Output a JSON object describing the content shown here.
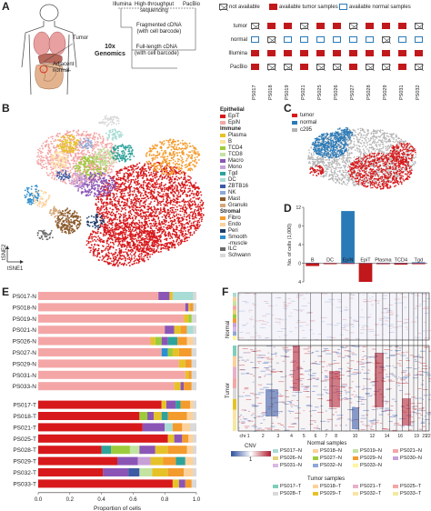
{
  "panels": {
    "a": "A",
    "b": "B",
    "c": "C",
    "d": "D",
    "e": "E",
    "f": "F"
  },
  "panel_a": {
    "anatomy_labels": {
      "tumor": "Tumor",
      "adjacent": "Adjacent\nnormal"
    },
    "workflow": {
      "illumina": "Illumina",
      "pacbio": "PacBio",
      "hts": "High-throughput\nsequencing",
      "fragmented": "Fragmented cDNA\n(with cell barcode)",
      "tenx": "10x\nGenomics",
      "fulllength": "Full-length cDNA\n(with cell barcode)"
    },
    "legend": {
      "not_available": "not available",
      "tumor_avail": "available tumor samples",
      "normal_avail": "available normal samples"
    },
    "rows": [
      "tumor",
      "normal",
      "Illumina",
      "PacBio"
    ],
    "samples": [
      "PS017",
      "PS018",
      "PS019",
      "PS021",
      "PS025",
      "PS026",
      "PS027",
      "PS028",
      "PS029",
      "PS031",
      "PS032",
      "PS033"
    ],
    "grid": [
      [
        "X",
        "T",
        "T",
        "X",
        "T",
        "T",
        "X",
        "T",
        "T",
        "T",
        "X",
        "T"
      ],
      [
        "N",
        "X",
        "N",
        "N",
        "N",
        "N",
        "N",
        "N",
        "X",
        "N",
        "N",
        "N"
      ],
      [
        "T",
        "T",
        "T",
        "T",
        "T",
        "T",
        "T",
        "T",
        "T",
        "T",
        "T",
        "T"
      ],
      [
        "T",
        "X",
        "X",
        "T",
        "X",
        "X",
        "T",
        "X",
        "X",
        "T",
        "X",
        "X"
      ]
    ],
    "colors": {
      "tumor": "#c0181b",
      "normal": "#2a7ab8"
    }
  },
  "panel_b": {
    "axis": {
      "y": "tSNE2",
      "x": "tSNE1"
    },
    "groups": [
      {
        "title": "Epithelial",
        "items": [
          {
            "label": "EpiT",
            "color": "#d7191c"
          },
          {
            "label": "EpiN",
            "color": "#f4a6a6"
          }
        ]
      },
      {
        "title": "Immune",
        "items": [
          {
            "label": "Plasma",
            "color": "#e6c229"
          },
          {
            "label": "B",
            "color": "#fde2a2"
          },
          {
            "label": "TCD4",
            "color": "#9ccb3c"
          },
          {
            "label": "TCD8",
            "color": "#c3e3a1"
          },
          {
            "label": "Macro",
            "color": "#8b55b5"
          },
          {
            "label": "Mono",
            "color": "#c7a0d8"
          },
          {
            "label": "Tgd",
            "color": "#2ea39b"
          },
          {
            "label": "DC",
            "color": "#a8dcd5"
          },
          {
            "label": "ZBTB16",
            "color": "#3b5ba5"
          },
          {
            "label": "NK",
            "color": "#8ea8d8"
          },
          {
            "label": "Mast",
            "color": "#8c5a2b"
          },
          {
            "label": "Granulo",
            "color": "#d6a77a"
          }
        ]
      },
      {
        "title": "Stromal",
        "items": [
          {
            "label": "Fibro",
            "color": "#f49b2d"
          },
          {
            "label": "Endo",
            "color": "#fcd19c"
          },
          {
            "label": "Peri",
            "color": "#1f3d6b"
          },
          {
            "label": "Smooth\n-muscle",
            "color": "#2d8fd0"
          },
          {
            "label": "ILC",
            "color": "#6a6a6a"
          },
          {
            "label": "Schwann",
            "color": "#d9d9d9"
          }
        ]
      }
    ]
  },
  "panel_c": {
    "legend": [
      {
        "label": "tumor",
        "color": "#d7191c"
      },
      {
        "label": "normal",
        "color": "#2a7ab8"
      },
      {
        "label": "c295",
        "color": "#b3b3b3"
      }
    ]
  },
  "chart_data": [
    {
      "type": "bar",
      "panel": "D",
      "ylabel": "No. of cells (1,000)",
      "ylim": [
        -4,
        12
      ],
      "yticks": [
        -4,
        0,
        4,
        8,
        12
      ],
      "categories": [
        "B",
        "DC",
        "EpiN",
        "EpiT",
        "Plasma",
        "TCD4",
        "Tgd"
      ],
      "series": [
        {
          "name": "normal",
          "color": "#2a7ab8",
          "values": [
            0.1,
            0.05,
            11.2,
            0.05,
            0.1,
            0.1,
            0.2
          ]
        },
        {
          "name": "tumor",
          "color": "#c0181b",
          "values": [
            -0.6,
            -0.2,
            -0.05,
            -4.0,
            -0.2,
            -0.3,
            -0.2
          ]
        }
      ]
    },
    {
      "type": "bar",
      "panel": "E",
      "orientation": "horizontal-stacked",
      "xlabel": "Proportion of cells",
      "xlim": [
        0,
        1.0
      ],
      "xticks": [
        0,
        0.2,
        0.4,
        0.6,
        0.8,
        1.0
      ],
      "categories": [
        "PS017-N",
        "PS018-N",
        "PS019-N",
        "PS021-N",
        "PS026-N",
        "PS027-N",
        "PS029-N",
        "PS031-N",
        "PS033-N",
        "PS017-T",
        "PS018-T",
        "PS021-T",
        "PS025-T",
        "PS028-T",
        "PS029-T",
        "PS032-T",
        "PS033-T"
      ]
    }
  ],
  "panel_e": {
    "rows": [
      {
        "label": "PS017-N",
        "segs": [
          [
            "#f4a6a6",
            0.76
          ],
          [
            "#8b55b5",
            0.07
          ],
          [
            "#e6c229",
            0.02
          ],
          [
            "#a8dcd5",
            0.13
          ],
          [
            "#d9d9d9",
            0.02
          ]
        ]
      },
      {
        "label": "PS018-N",
        "segs": [
          [
            "#f4a6a6",
            0.93
          ],
          [
            "#8b55b5",
            0.02
          ],
          [
            "#e6c229",
            0.01
          ],
          [
            "#f49b2d",
            0.02
          ],
          [
            "#d9d9d9",
            0.02
          ]
        ]
      },
      {
        "label": "PS019-N",
        "segs": [
          [
            "#f4a6a6",
            0.92
          ],
          [
            "#e6c229",
            0.03
          ],
          [
            "#9ccb3c",
            0.02
          ],
          [
            "#d9d9d9",
            0.03
          ]
        ]
      },
      {
        "label": "PS021-N",
        "segs": [
          [
            "#f4a6a6",
            0.8
          ],
          [
            "#8b55b5",
            0.06
          ],
          [
            "#e6c229",
            0.04
          ],
          [
            "#f49b2d",
            0.04
          ],
          [
            "#a8dcd5",
            0.04
          ],
          [
            "#d9d9d9",
            0.02
          ]
        ]
      },
      {
        "label": "PS026-N",
        "segs": [
          [
            "#f4a6a6",
            0.71
          ],
          [
            "#e6c229",
            0.03
          ],
          [
            "#9ccb3c",
            0.04
          ],
          [
            "#8b55b5",
            0.04
          ],
          [
            "#2ea39b",
            0.06
          ],
          [
            "#f49b2d",
            0.06
          ],
          [
            "#fcd19c",
            0.04
          ],
          [
            "#d9d9d9",
            0.02
          ]
        ]
      },
      {
        "label": "PS027-N",
        "segs": [
          [
            "#f4a6a6",
            0.78
          ],
          [
            "#2d8fd0",
            0.04
          ],
          [
            "#9ccb3c",
            0.03
          ],
          [
            "#e6c229",
            0.04
          ],
          [
            "#f49b2d",
            0.08
          ],
          [
            "#d9d9d9",
            0.03
          ]
        ]
      },
      {
        "label": "PS029-N",
        "segs": [
          [
            "#f4a6a6",
            0.89
          ],
          [
            "#e6c229",
            0.04
          ],
          [
            "#f49b2d",
            0.04
          ],
          [
            "#d9d9d9",
            0.03
          ]
        ]
      },
      {
        "label": "PS031-N",
        "segs": [
          [
            "#f4a6a6",
            0.93
          ],
          [
            "#e6c229",
            0.02
          ],
          [
            "#f49b2d",
            0.02
          ],
          [
            "#d9d9d9",
            0.03
          ]
        ]
      },
      {
        "label": "PS033-N",
        "segs": [
          [
            "#f4a6a6",
            0.86
          ],
          [
            "#e6c229",
            0.04
          ],
          [
            "#8b55b5",
            0.02
          ],
          [
            "#f49b2d",
            0.05
          ],
          [
            "#d9d9d9",
            0.03
          ]
        ]
      },
      {
        "label": "PS017-T",
        "segs": [
          [
            "#d7191c",
            0.78
          ],
          [
            "#e6c229",
            0.03
          ],
          [
            "#8b55b5",
            0.06
          ],
          [
            "#2ea39b",
            0.03
          ],
          [
            "#f49b2d",
            0.06
          ],
          [
            "#fcd19c",
            0.02
          ],
          [
            "#d9d9d9",
            0.02
          ]
        ]
      },
      {
        "label": "PS018-T",
        "segs": [
          [
            "#d7191c",
            0.64
          ],
          [
            "#9ccb3c",
            0.05
          ],
          [
            "#8b55b5",
            0.04
          ],
          [
            "#e6c229",
            0.05
          ],
          [
            "#2ea39b",
            0.04
          ],
          [
            "#f49b2d",
            0.12
          ],
          [
            "#fcd19c",
            0.04
          ],
          [
            "#d9d9d9",
            0.02
          ]
        ]
      },
      {
        "label": "PS021-T",
        "segs": [
          [
            "#d7191c",
            0.66
          ],
          [
            "#8b55b5",
            0.14
          ],
          [
            "#a8dcd5",
            0.05
          ],
          [
            "#f49b2d",
            0.06
          ],
          [
            "#fcd19c",
            0.05
          ],
          [
            "#d9d9d9",
            0.04
          ]
        ]
      },
      {
        "label": "PS025-T",
        "segs": [
          [
            "#d7191c",
            0.82
          ],
          [
            "#e6c229",
            0.04
          ],
          [
            "#8b55b5",
            0.05
          ],
          [
            "#f49b2d",
            0.04
          ],
          [
            "#fcd19c",
            0.03
          ],
          [
            "#d9d9d9",
            0.02
          ]
        ]
      },
      {
        "label": "PS028-T",
        "segs": [
          [
            "#d7191c",
            0.4
          ],
          [
            "#2ea39b",
            0.06
          ],
          [
            "#9ccb3c",
            0.12
          ],
          [
            "#c3e3a1",
            0.06
          ],
          [
            "#8b55b5",
            0.1
          ],
          [
            "#e6c229",
            0.08
          ],
          [
            "#f49b2d",
            0.12
          ],
          [
            "#fcd19c",
            0.04
          ],
          [
            "#d9d9d9",
            0.02
          ]
        ]
      },
      {
        "label": "PS029-T",
        "segs": [
          [
            "#d7191c",
            0.5
          ],
          [
            "#8b55b5",
            0.13
          ],
          [
            "#c7a0d8",
            0.08
          ],
          [
            "#e6c229",
            0.08
          ],
          [
            "#f49b2d",
            0.08
          ],
          [
            "#2ea39b",
            0.06
          ],
          [
            "#fcd19c",
            0.05
          ],
          [
            "#d9d9d9",
            0.02
          ]
        ]
      },
      {
        "label": "PS032-T",
        "segs": [
          [
            "#d7191c",
            0.41
          ],
          [
            "#8b55b5",
            0.16
          ],
          [
            "#3b5ba5",
            0.07
          ],
          [
            "#c3e3a1",
            0.08
          ],
          [
            "#e6c229",
            0.1
          ],
          [
            "#f49b2d",
            0.1
          ],
          [
            "#fcd19c",
            0.06
          ],
          [
            "#d9d9d9",
            0.02
          ]
        ]
      },
      {
        "label": "PS033-T",
        "segs": [
          [
            "#d7191c",
            0.85
          ],
          [
            "#e6c229",
            0.04
          ],
          [
            "#8b55b5",
            0.04
          ],
          [
            "#f49b2d",
            0.04
          ],
          [
            "#d9d9d9",
            0.03
          ]
        ]
      }
    ]
  },
  "panel_f": {
    "row_labels": {
      "normal": "Normal",
      "tumor": "Tumor"
    },
    "chromosomes": [
      "chr 1",
      "2",
      "3",
      "4",
      "5",
      "6",
      "7",
      "8",
      "9",
      "10",
      "11",
      "12",
      "13",
      "14",
      "15",
      "16",
      "17",
      "18",
      "19",
      "20",
      "21",
      "22"
    ],
    "cnv": {
      "title": "CNV",
      "tick": "1"
    },
    "normal_title": "Normal samples",
    "tumor_title": "Tumor samples",
    "normal_samples": [
      {
        "label": "PS017–N",
        "color": "#a8dcd5"
      },
      {
        "label": "PS018–N",
        "color": "#fcd19c"
      },
      {
        "label": "PS019–N",
        "color": "#c3e3a1"
      },
      {
        "label": "PS021–N",
        "color": "#f4a6a6"
      },
      {
        "label": "PS026–N",
        "color": "#e6d27a"
      },
      {
        "label": "PS027–N",
        "color": "#9ccb3c"
      },
      {
        "label": "PS029–N",
        "color": "#f49b2d"
      },
      {
        "label": "PS030–N",
        "color": "#c7a0d8"
      },
      {
        "label": "PS031–N",
        "color": "#d9b8e6"
      },
      {
        "label": "PS032–N",
        "color": "#8ea8d8"
      },
      {
        "label": "PS033–N",
        "color": "#fff4a0"
      }
    ],
    "tumor_samples": [
      {
        "label": "PS017–T",
        "color": "#7fcdbb"
      },
      {
        "label": "PS018–T",
        "color": "#fcd19c"
      },
      {
        "label": "PS021–T",
        "color": "#e7b1c9"
      },
      {
        "label": "PS025–T",
        "color": "#f4a6a6"
      },
      {
        "label": "PS028–T",
        "color": "#d9d9d9"
      },
      {
        "label": "PS029–T",
        "color": "#e6c229"
      },
      {
        "label": "PS032–T",
        "color": "#fbe4a4"
      },
      {
        "label": "PS033–T",
        "color": "#f5e9a0"
      }
    ]
  }
}
